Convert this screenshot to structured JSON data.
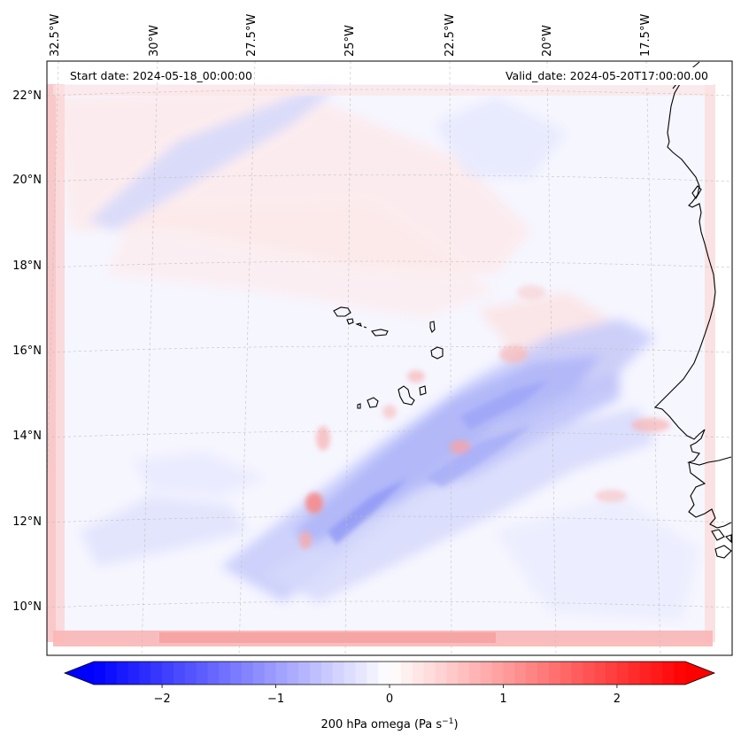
{
  "annotations": {
    "start_date": "Start date: 2024-05-18_00:00:00",
    "valid_date": "Valid_date: 2024-05-20T17:00:00.00"
  },
  "map": {
    "projection": "lambert-conformal",
    "lon_labels": [
      "32.5°W",
      "30°W",
      "27.5°W",
      "25°W",
      "22.5°W",
      "20°W",
      "17.5°W"
    ],
    "lat_labels": [
      "22°N",
      "20°N",
      "18°N",
      "16°N",
      "14°N",
      "12°N",
      "10°N"
    ],
    "gridlines": "dashed-light-gray",
    "coastlines": [
      "cape-verde-islands",
      "west-africa-coast"
    ],
    "field_pattern": "sw-ne-banded-omega"
  },
  "colorbar": {
    "colormap": "bwr",
    "extend": "both",
    "vmin": -2.6,
    "vmax": 2.6,
    "ticks": [
      "−2",
      "−1",
      "0",
      "1",
      "2"
    ],
    "tick_values": [
      -2,
      -1,
      0,
      1,
      2
    ],
    "label_prefix": "200 hPa omega (Pa s",
    "label_sup": "−1",
    "label_suffix": ")"
  },
  "colors": {
    "negative": "#0000ff",
    "zero": "#ffffff",
    "positive": "#ff0000",
    "coast": "#000000",
    "grid": "#bbbbbb"
  }
}
